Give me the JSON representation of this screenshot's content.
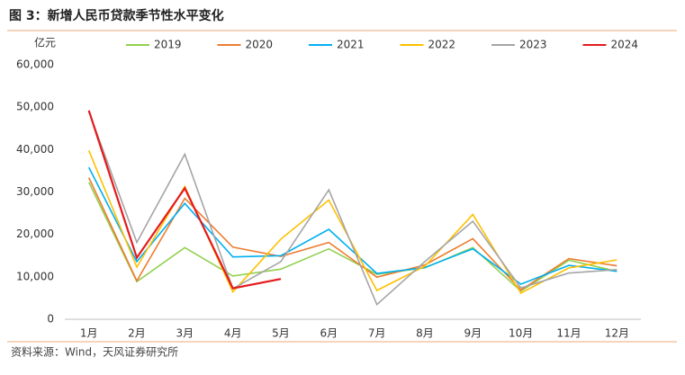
{
  "chart_data": {
    "type": "line",
    "title": "图 3：新增人民币贷款季节性水平变化",
    "y_axis_label": "亿元",
    "source": "资料来源：Wind，天风证券研究所",
    "categories": [
      "1月",
      "2月",
      "3月",
      "4月",
      "5月",
      "6月",
      "7月",
      "8月",
      "9月",
      "10月",
      "11月",
      "12月"
    ],
    "series": [
      {
        "name": "2019",
        "color": "#92d050",
        "values": [
          32300,
          8858,
          16900,
          10200,
          11800,
          16600,
          10600,
          12100,
          16900,
          6613,
          13900,
          11300
        ]
      },
      {
        "name": "2020",
        "color": "#ed7d31",
        "values": [
          33400,
          9057,
          28500,
          17000,
          14800,
          18100,
          9927,
          12800,
          19000,
          6898,
          14300,
          12600
        ]
      },
      {
        "name": "2021",
        "color": "#00b0f0",
        "values": [
          35800,
          13600,
          27300,
          14700,
          15000,
          21200,
          10800,
          12200,
          16600,
          8262,
          12700,
          11300
        ]
      },
      {
        "name": "2022",
        "color": "#ffc000",
        "values": [
          39800,
          12300,
          31300,
          6454,
          18900,
          28100,
          6790,
          12500,
          24700,
          6152,
          12100,
          14000
        ]
      },
      {
        "name": "2023",
        "color": "#a5a5a5",
        "values": [
          49000,
          18100,
          38900,
          7188,
          13600,
          30500,
          3459,
          13600,
          23100,
          7384,
          10900,
          11700
        ]
      },
      {
        "name": "2024",
        "color": "#e41a1c",
        "values": [
          49200,
          14500,
          30900,
          7300,
          9500,
          null,
          null,
          null,
          null,
          null,
          null,
          null
        ]
      }
    ],
    "ylim": [
      0,
      60000
    ],
    "yticks": [
      0,
      {
        "value": 10000,
        "label": "10,000"
      },
      {
        "value": 20000,
        "label": "20,000"
      },
      {
        "value": 30000,
        "label": "30,000"
      },
      {
        "value": 40000,
        "label": "40,000"
      },
      {
        "value": 50000,
        "label": "50,000"
      },
      {
        "value": 60000,
        "label": "60,000"
      }
    ],
    "grid": false
  }
}
